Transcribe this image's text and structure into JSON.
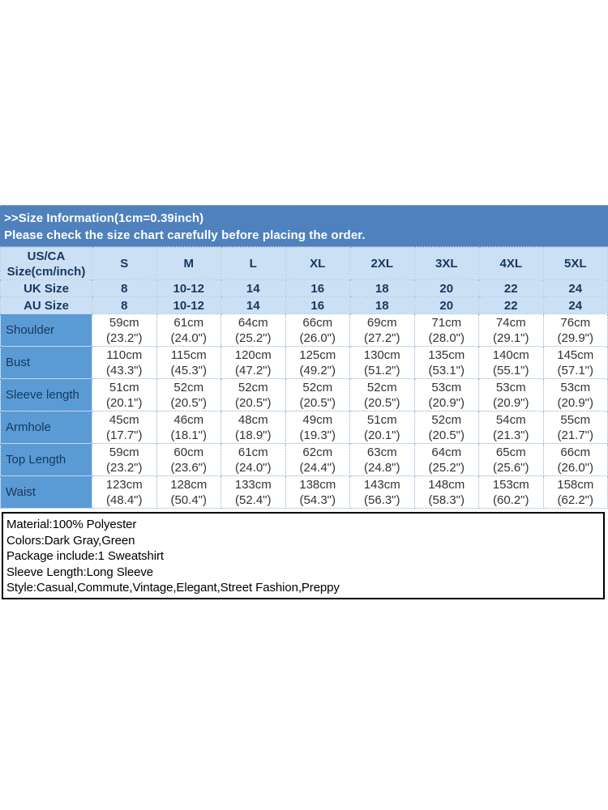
{
  "palette": {
    "banner_bg": "#4F81BD",
    "header_bg": "#CBE0F4",
    "label_bg": "#5B9BD5",
    "navy_text": "#17375E",
    "grid_border": "#8FAFD4"
  },
  "banner": {
    "line1": ">>Size Information(1cm=0.39inch)",
    "line2": "Please check the size chart carefully before placing the order."
  },
  "size_table": {
    "corner": {
      "line1": "US/CA",
      "line2": "Size(cm/inch)"
    },
    "columns": [
      "S",
      "M",
      "L",
      "XL",
      "2XL",
      "3XL",
      "4XL",
      "5XL"
    ],
    "simple_rows": [
      {
        "label": "UK Size",
        "values": [
          "8",
          "10-12",
          "14",
          "16",
          "18",
          "20",
          "22",
          "24"
        ]
      },
      {
        "label": "AU Size",
        "values": [
          "8",
          "10-12",
          "14",
          "16",
          "18",
          "20",
          "22",
          "24"
        ]
      }
    ],
    "measurement_rows": [
      {
        "label": "Shoulder",
        "values": [
          {
            "cm": "59cm",
            "in": "(23.2\")"
          },
          {
            "cm": "61cm",
            "in": "(24.0\")"
          },
          {
            "cm": "64cm",
            "in": "(25.2\")"
          },
          {
            "cm": "66cm",
            "in": "(26.0\")"
          },
          {
            "cm": "69cm",
            "in": "(27.2\")"
          },
          {
            "cm": "71cm",
            "in": "(28.0\")"
          },
          {
            "cm": "74cm",
            "in": "(29.1\")"
          },
          {
            "cm": "76cm",
            "in": "(29.9\")"
          }
        ]
      },
      {
        "label": "Bust",
        "values": [
          {
            "cm": "110cm",
            "in": "(43.3\")"
          },
          {
            "cm": "115cm",
            "in": "(45.3\")"
          },
          {
            "cm": "120cm",
            "in": "(47.2\")"
          },
          {
            "cm": "125cm",
            "in": "(49.2\")"
          },
          {
            "cm": "130cm",
            "in": "(51.2\")"
          },
          {
            "cm": "135cm",
            "in": "(53.1\")"
          },
          {
            "cm": "140cm",
            "in": "(55.1\")"
          },
          {
            "cm": "145cm",
            "in": "(57.1\")"
          }
        ]
      },
      {
        "label": "Sleeve length",
        "values": [
          {
            "cm": "51cm",
            "in": "(20.1\")"
          },
          {
            "cm": "52cm",
            "in": "(20.5\")"
          },
          {
            "cm": "52cm",
            "in": "(20.5\")"
          },
          {
            "cm": "52cm",
            "in": "(20.5\")"
          },
          {
            "cm": "52cm",
            "in": "(20.5\")"
          },
          {
            "cm": "53cm",
            "in": "(20.9\")"
          },
          {
            "cm": "53cm",
            "in": "(20.9\")"
          },
          {
            "cm": "53cm",
            "in": "(20.9\")"
          }
        ]
      },
      {
        "label": "Armhole",
        "values": [
          {
            "cm": "45cm",
            "in": "(17.7\")"
          },
          {
            "cm": "46cm",
            "in": "(18.1\")"
          },
          {
            "cm": "48cm",
            "in": "(18.9\")"
          },
          {
            "cm": "49cm",
            "in": "(19.3\")"
          },
          {
            "cm": "51cm",
            "in": "(20.1\")"
          },
          {
            "cm": "52cm",
            "in": "(20.5\")"
          },
          {
            "cm": "54cm",
            "in": "(21.3\")"
          },
          {
            "cm": "55cm",
            "in": "(21.7\")"
          }
        ]
      },
      {
        "label": "Top Length",
        "values": [
          {
            "cm": "59cm",
            "in": "(23.2\")"
          },
          {
            "cm": "60cm",
            "in": "(23.6\")"
          },
          {
            "cm": "61cm",
            "in": "(24.0\")"
          },
          {
            "cm": "62cm",
            "in": "(24.4\")"
          },
          {
            "cm": "63cm",
            "in": "(24.8\")"
          },
          {
            "cm": "64cm",
            "in": "(25.2\")"
          },
          {
            "cm": "65cm",
            "in": "(25.6\")"
          },
          {
            "cm": "66cm",
            "in": "(26.0\")"
          }
        ]
      },
      {
        "label": "Waist",
        "values": [
          {
            "cm": "123cm",
            "in": "(48.4\")"
          },
          {
            "cm": "128cm",
            "in": "(50.4\")"
          },
          {
            "cm": "133cm",
            "in": "(52.4\")"
          },
          {
            "cm": "138cm",
            "in": "(54.3\")"
          },
          {
            "cm": "143cm",
            "in": "(56.3\")"
          },
          {
            "cm": "148cm",
            "in": "(58.3\")"
          },
          {
            "cm": "153cm",
            "in": "(60.2\")"
          },
          {
            "cm": "158cm",
            "in": "(62.2\")"
          }
        ]
      }
    ]
  },
  "product_info": {
    "lines": [
      "Material:100% Polyester",
      "Colors:Dark Gray,Green",
      "Package include:1 Sweatshirt",
      "Sleeve Length:Long Sleeve",
      "Style:Casual,Commute,Vintage,Elegant,Street Fashion,Preppy"
    ]
  }
}
